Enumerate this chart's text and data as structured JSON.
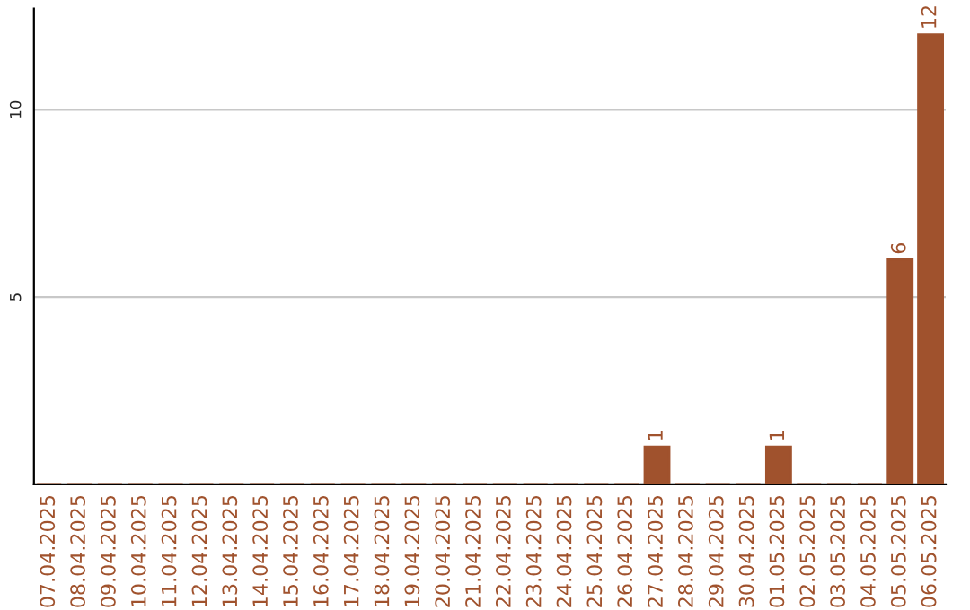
{
  "chart_data": {
    "type": "bar",
    "categories": [
      "07.04.2025",
      "08.04.2025",
      "09.04.2025",
      "10.04.2025",
      "11.04.2025",
      "12.04.2025",
      "13.04.2025",
      "14.04.2025",
      "15.04.2025",
      "16.04.2025",
      "17.04.2025",
      "18.04.2025",
      "19.04.2025",
      "20.04.2025",
      "21.04.2025",
      "22.04.2025",
      "23.04.2025",
      "24.04.2025",
      "25.04.2025",
      "26.04.2025",
      "27.04.2025",
      "28.04.2025",
      "29.04.2025",
      "30.04.2025",
      "01.05.2025",
      "02.05.2025",
      "03.05.2025",
      "04.05.2025",
      "05.05.2025",
      "06.05.2025"
    ],
    "values": [
      0,
      0,
      0,
      0,
      0,
      0,
      0,
      0,
      0,
      0,
      0,
      0,
      0,
      0,
      0,
      0,
      0,
      0,
      0,
      0,
      1,
      0,
      0,
      0,
      1,
      0,
      0,
      0,
      6,
      12
    ],
    "value_labels": [
      null,
      null,
      null,
      null,
      null,
      null,
      null,
      null,
      null,
      null,
      null,
      null,
      null,
      null,
      null,
      null,
      null,
      null,
      null,
      null,
      "1",
      null,
      null,
      null,
      "1",
      null,
      null,
      null,
      "6",
      "12"
    ],
    "color": "#a0522d",
    "ylim": [
      0,
      12.7
    ],
    "yticks": [
      5,
      10
    ],
    "grid": "y",
    "legend": false
  }
}
